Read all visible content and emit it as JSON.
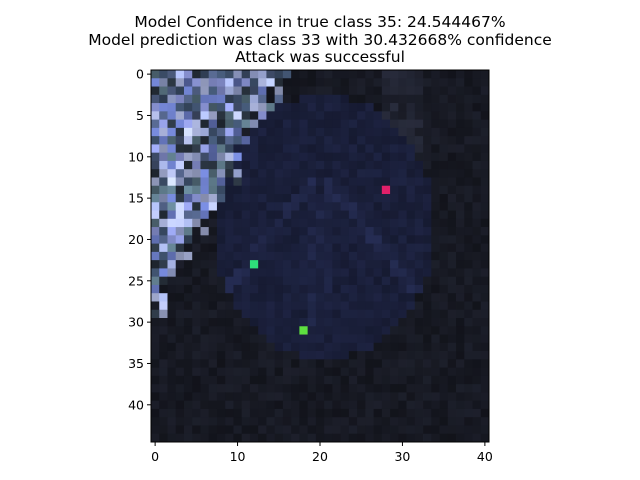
{
  "title_lines": [
    "Model Confidence in true class  35:     24.544467%",
    "Model prediction was class   33 with 30.432668% confidence",
    "Attack was successful"
  ],
  "chart_data": {
    "type": "image",
    "title": "Model Confidence in true class  35:     24.544467%\nModel prediction was class   33 with 30.432668% confidence\nAttack was successful",
    "image_width": 41,
    "image_height": 45,
    "xlim": [
      -0.5,
      40.5
    ],
    "ylim": [
      44.5,
      -0.5
    ],
    "x_ticks": [
      0,
      10,
      20,
      30,
      40
    ],
    "y_ticks": [
      0,
      5,
      10,
      15,
      20,
      25,
      30,
      35,
      40
    ],
    "x_tick_labels": [
      "0",
      "10",
      "20",
      "30",
      "40"
    ],
    "y_tick_labels": [
      "0",
      "5",
      "10",
      "15",
      "20",
      "25",
      "30",
      "35",
      "40"
    ],
    "xlabel": "",
    "ylabel": "",
    "grid": false,
    "background_color": "#161821",
    "sign_color": "#1a1f3a",
    "foliage_colors": [
      "#8c96d8",
      "#6a7bc4",
      "#a9b6e8",
      "#3d4f6a",
      "#5e7a8a",
      "#2a3440",
      "#b8c2ee",
      "#4b5a7c"
    ],
    "perturbed_pixels": [
      {
        "x": 28,
        "y": 14,
        "color": "#e0206a"
      },
      {
        "x": 12,
        "y": 23,
        "color": "#2ee07a"
      },
      {
        "x": 18,
        "y": 31,
        "color": "#5ee040"
      }
    ]
  }
}
